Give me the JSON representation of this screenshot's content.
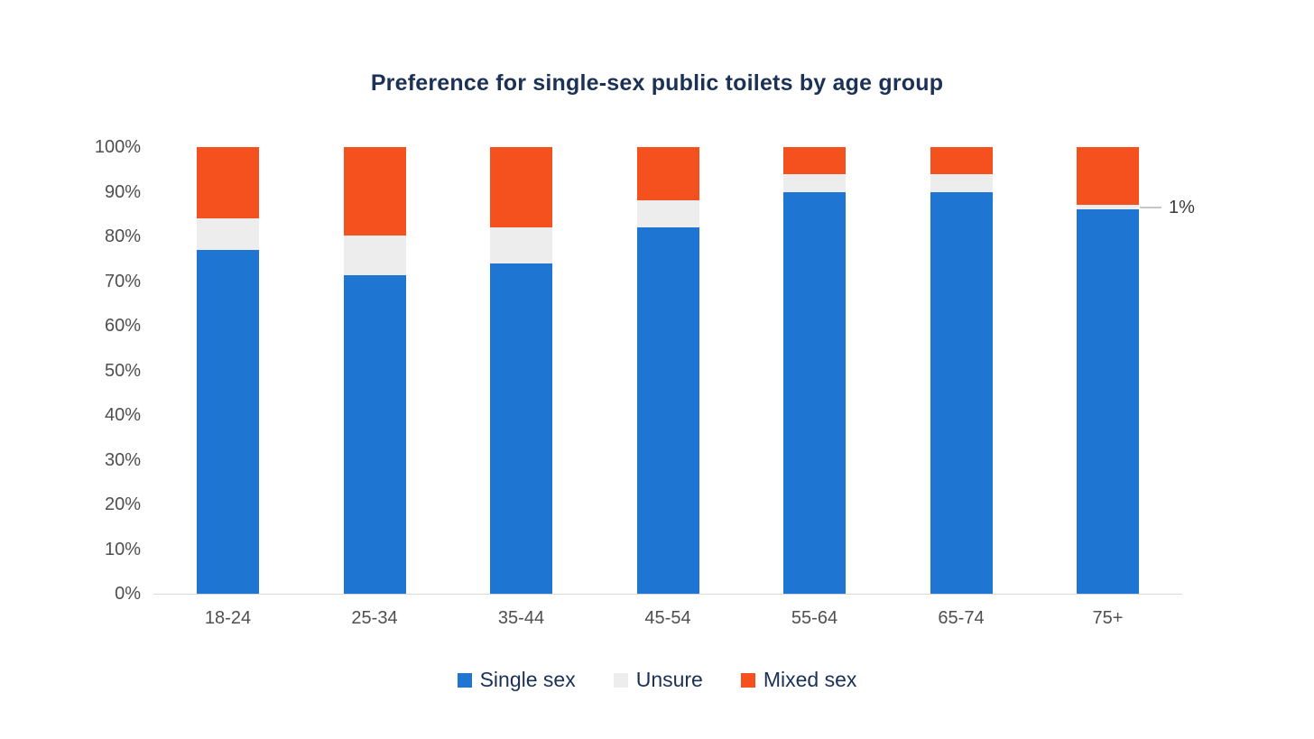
{
  "chart_data": {
    "type": "bar",
    "stacked": true,
    "title": "Preference for single-sex public toilets by age group",
    "categories": [
      "18-24",
      "25-34",
      "35-44",
      "45-54",
      "55-64",
      "65-74",
      "75+"
    ],
    "series": [
      {
        "name": "Single sex",
        "color": "#1E76D2",
        "label_color": "#FFFFFF",
        "values": [
          77,
          72,
          74,
          82,
          90,
          90,
          86
        ]
      },
      {
        "name": "Unsure",
        "color": "#EDEDED",
        "label_color": "#3B3B3B",
        "values": [
          7,
          9,
          8,
          6,
          4,
          4,
          1
        ]
      },
      {
        "name": "Mixed sex",
        "color": "#F4511E",
        "label_color": "#FFFFFF",
        "values": [
          16,
          20,
          18,
          12,
          6,
          6,
          13
        ]
      }
    ],
    "value_suffix": "%",
    "y_ticks": [
      "0%",
      "10%",
      "20%",
      "30%",
      "40%",
      "50%",
      "60%",
      "70%",
      "80%",
      "90%",
      "100%"
    ],
    "ylim": [
      0,
      100
    ],
    "grid": false,
    "legend_position": "bottom",
    "callout": {
      "category": "75+",
      "series": "Unsure",
      "label": "1%"
    }
  }
}
